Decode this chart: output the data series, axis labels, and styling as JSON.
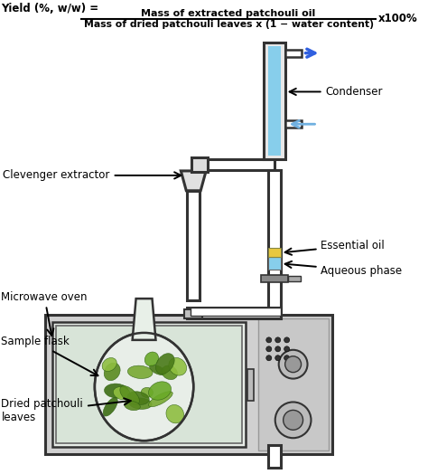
{
  "labels": {
    "condenser": "Condenser",
    "clevenger": "Clevenger extractor",
    "essential_oil": "Essential oil",
    "aqueous": "Aqueous phase",
    "microwave": "Microwave oven",
    "flask": "Sample flask",
    "leaves": "Dried patchouli\nleaves"
  },
  "formula_lhs": "Yield (%, w/w) = ",
  "formula_num": "Mass of extracted patchouli oil",
  "formula_den": "Mass of dried patchouli leaves x (1 − water content)",
  "formula_rhs": "x100%",
  "colors": {
    "condenser_water": "#87CEEB",
    "essential_oil_color": "#E8C840",
    "aqueous_color": "#87CEEB",
    "apparatus_fill": "#FFFFFF",
    "apparatus_edge": "#333333",
    "oven_outer": "#D0D0D0",
    "oven_inner_bg": "#C8D8C8",
    "panel_bg": "#C8C8C8",
    "knob_fill": "#AAAAAA",
    "flask_fill": "#E8EEE8",
    "bg": "#FFFFFF",
    "arrow_out": "#3060E0",
    "arrow_in": "#70B0E0",
    "stopcock": "#888888"
  },
  "lw_thick": 2.2,
  "lw_med": 1.8,
  "lw_thin": 1.2
}
